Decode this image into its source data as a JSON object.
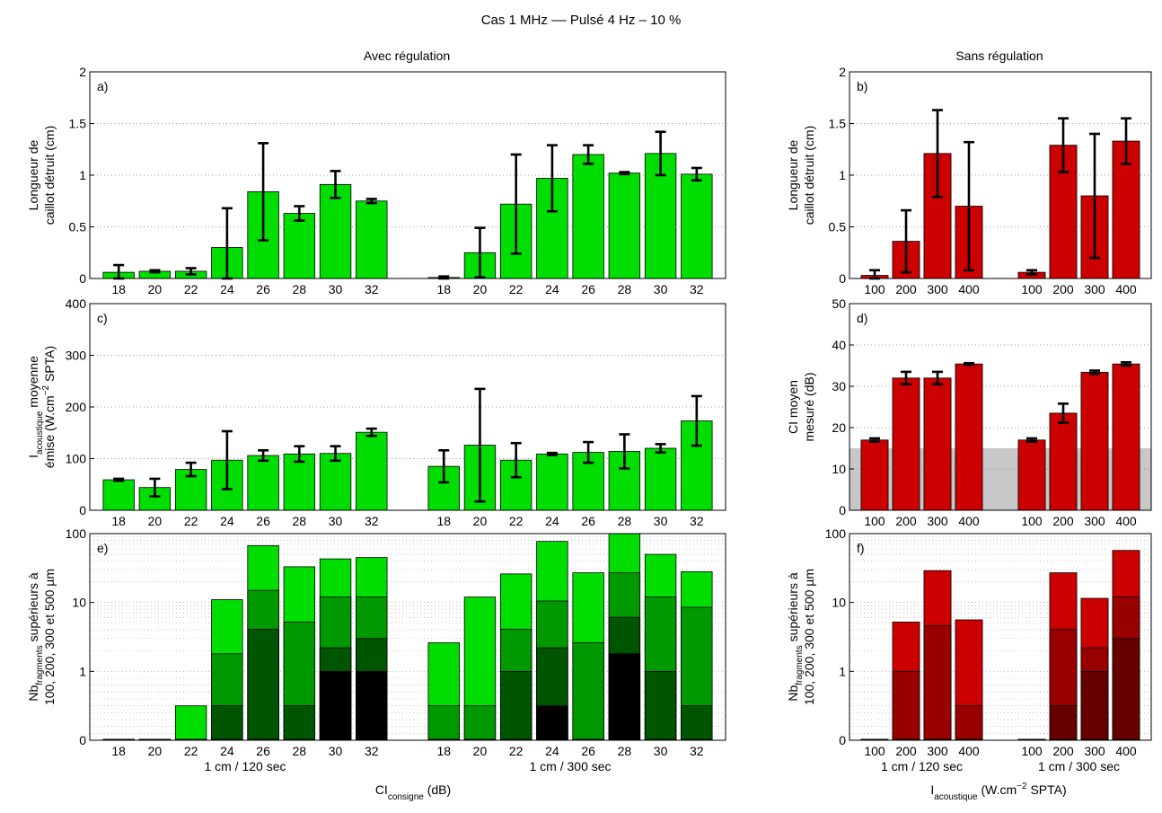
{
  "figure": {
    "title": "Cas 1 MHz  ––  Pulsé 4 Hz – 10 %",
    "left_heading": "Avec régulation",
    "right_heading": "Sans régulation",
    "left_xlabel": {
      "main": "CI",
      "sub": "consigne",
      "after": " (dB)"
    },
    "right_xlabel": {
      "main": "I",
      "sub": "acoustique",
      "after": " (W.cm",
      "sup": "−2",
      "after2": " SPTA)"
    }
  },
  "colors": {
    "green": "#00dd00",
    "red": "#cc0000",
    "green_shades": [
      "#00dd00",
      "#009900",
      "#005500",
      "#000000"
    ],
    "red_shades": [
      "#cc0000",
      "#990000",
      "#660000",
      "#330000"
    ],
    "gray_band": "#c8c8c8"
  },
  "chart_data": [
    {
      "id": "a",
      "panel_label": "a)",
      "type": "bar",
      "ylabel": [
        "Longueur de",
        "caillot détruit (cm)"
      ],
      "ylim": [
        0,
        2
      ],
      "yticks": [
        "0",
        "0.5",
        "1",
        "1.5",
        "2"
      ],
      "grid": "dotted-horizontal",
      "groups": [
        {
          "categories": [
            "18",
            "20",
            "22",
            "24",
            "26",
            "28",
            "30",
            "32"
          ],
          "values": [
            0.06,
            0.07,
            0.07,
            0.3,
            0.84,
            0.63,
            0.91,
            0.75
          ],
          "err": [
            0.07,
            0.01,
            0.03,
            0.38,
            0.47,
            0.07,
            0.13,
            0.02
          ]
        },
        {
          "categories": [
            "18",
            "20",
            "22",
            "24",
            "26",
            "28",
            "30",
            "32"
          ],
          "values": [
            0.01,
            0.25,
            0.72,
            0.97,
            1.2,
            1.02,
            1.21,
            1.01
          ],
          "err": [
            0.01,
            0.24,
            0.48,
            0.32,
            0.09,
            0.01,
            0.21,
            0.06
          ]
        }
      ]
    },
    {
      "id": "b",
      "panel_label": "b)",
      "type": "bar",
      "ylabel": [
        "Longueur de",
        "caillot détruit (cm)"
      ],
      "ylim": [
        0,
        2
      ],
      "yticks": [
        "0",
        "0.5",
        "1",
        "1.5",
        "2"
      ],
      "grid": "dotted-horizontal",
      "groups": [
        {
          "categories": [
            "100",
            "200",
            "300",
            "400"
          ],
          "values": [
            0.03,
            0.36,
            1.21,
            0.7
          ],
          "err": [
            0.05,
            0.3,
            0.42,
            0.62
          ]
        },
        {
          "categories": [
            "100",
            "200",
            "300",
            "400"
          ],
          "values": [
            0.06,
            1.29,
            0.8,
            1.33
          ],
          "err": [
            0.02,
            0.26,
            0.6,
            0.22
          ]
        }
      ]
    },
    {
      "id": "c",
      "panel_label": "c)",
      "type": "bar",
      "ylabel": [
        "I_acoustique moyenne",
        "émise (W.cm−2 SPTA)"
      ],
      "ylim": [
        0,
        400
      ],
      "yticks": [
        "0",
        "100",
        "200",
        "300",
        "400"
      ],
      "grid": "dotted-horizontal",
      "groups": [
        {
          "categories": [
            "18",
            "20",
            "22",
            "24",
            "26",
            "28",
            "30",
            "32"
          ],
          "values": [
            59,
            44,
            79,
            97,
            106,
            109,
            110,
            151
          ],
          "err": [
            2,
            17,
            13,
            56,
            10,
            15,
            14,
            7
          ]
        },
        {
          "categories": [
            "18",
            "20",
            "22",
            "24",
            "26",
            "28",
            "30",
            "32"
          ],
          "values": [
            85,
            126,
            97,
            109,
            112,
            114,
            120,
            173
          ],
          "err": [
            31,
            109,
            33,
            2,
            20,
            33,
            8,
            48
          ]
        }
      ]
    },
    {
      "id": "d",
      "panel_label": "d)",
      "type": "bar",
      "ylabel": [
        "CI moyen",
        "mesuré (dB)"
      ],
      "ylim": [
        0,
        50
      ],
      "yticks": [
        "0",
        "10",
        "20",
        "30",
        "40",
        "50"
      ],
      "grid": "dotted-horizontal",
      "band": [
        0,
        15
      ],
      "groups": [
        {
          "categories": [
            "100",
            "200",
            "300",
            "400"
          ],
          "values": [
            17,
            32,
            32,
            35.4
          ],
          "err": [
            0.4,
            1.5,
            1.5,
            0.2
          ]
        },
        {
          "categories": [
            "100",
            "200",
            "300",
            "400"
          ],
          "values": [
            17,
            23.5,
            33.4,
            35.4
          ],
          "err": [
            0.4,
            2.3,
            0.4,
            0.4
          ]
        }
      ]
    },
    {
      "id": "e",
      "panel_label": "e)",
      "type": "bar",
      "scale": "log",
      "stacked_overlay": true,
      "ylabel": [
        "Nb_fragments supérieurs à",
        "100, 200, 300 et 500 µm"
      ],
      "yticks": [
        "0",
        "1",
        "10",
        "100"
      ],
      "grid": "dotted-horizontal",
      "series_order": [
        "100",
        "200",
        "300",
        "500"
      ],
      "groups": [
        {
          "categories": [
            "18",
            "20",
            "22",
            "24",
            "26",
            "28",
            "30",
            "32"
          ],
          "xgroup_label": "1 cm / 120 sec",
          "values": [
            [
              0,
              0,
              0,
              0
            ],
            [
              0,
              0,
              0,
              0
            ],
            [
              0.5,
              0,
              0,
              0
            ],
            [
              11,
              1.8,
              0.5,
              0
            ],
            [
              67,
              15,
              4.1,
              0
            ],
            [
              33,
              5.2,
              0.5,
              0
            ],
            [
              43,
              12,
              2.2,
              1
            ],
            [
              45,
              12,
              3,
              1
            ]
          ]
        },
        {
          "categories": [
            "18",
            "20",
            "22",
            "24",
            "26",
            "28",
            "30",
            "32"
          ],
          "xgroup_label": "1 cm / 300 sec",
          "values": [
            [
              2.6,
              0.5,
              0,
              0
            ],
            [
              12,
              0.5,
              0,
              0
            ],
            [
              26,
              4.1,
              1,
              0
            ],
            [
              77,
              10.5,
              2.2,
              0.5
            ],
            [
              27,
              2.6,
              0,
              0
            ],
            [
              100,
              27,
              6.1,
              1.8
            ],
            [
              50,
              12,
              1,
              0
            ],
            [
              28,
              8.5,
              0.5,
              0
            ]
          ]
        }
      ]
    },
    {
      "id": "f",
      "panel_label": "f)",
      "type": "bar",
      "scale": "log",
      "stacked_overlay": true,
      "ylabel": [
        "Nb_fragments supérieurs à",
        "100, 200, 300 et 500 µm"
      ],
      "yticks": [
        "0",
        "1",
        "10",
        "100"
      ],
      "grid": "dotted-horizontal",
      "series_order": [
        "100",
        "200",
        "300",
        "500"
      ],
      "groups": [
        {
          "categories": [
            "100",
            "200",
            "300",
            "400"
          ],
          "xgroup_label": "1 cm / 120 sec",
          "values": [
            [
              0,
              0,
              0,
              0
            ],
            [
              5.2,
              1,
              0,
              0
            ],
            [
              29,
              4.6,
              0,
              0
            ],
            [
              5.6,
              0.5,
              0,
              0
            ]
          ]
        },
        {
          "categories": [
            "100",
            "200",
            "300",
            "400"
          ],
          "xgroup_label": "1 cm / 300 sec",
          "values": [
            [
              0,
              0,
              0,
              0
            ],
            [
              27,
              4.1,
              0.5,
              0
            ],
            [
              11.5,
              2.2,
              1,
              0
            ],
            [
              57,
              12,
              3,
              0
            ]
          ]
        }
      ]
    }
  ]
}
